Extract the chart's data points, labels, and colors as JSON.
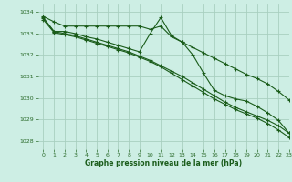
{
  "title": "Graphe pression niveau de la mer (hPa)",
  "background_color": "#cdeee4",
  "grid_color": "#a8cfc0",
  "line_color": "#1a5c1a",
  "xlim": [
    -0.5,
    23
  ],
  "ylim": [
    1027.6,
    1034.4
  ],
  "yticks": [
    1028,
    1029,
    1030,
    1031,
    1032,
    1033,
    1034
  ],
  "xticks": [
    0,
    1,
    2,
    3,
    4,
    5,
    6,
    7,
    8,
    9,
    10,
    11,
    12,
    13,
    14,
    15,
    16,
    17,
    18,
    19,
    20,
    21,
    22,
    23
  ],
  "series": [
    {
      "x": [
        0,
        1,
        2,
        3,
        4,
        5,
        6,
        7,
        8,
        9,
        10,
        11,
        12,
        13,
        14,
        15,
        16,
        17,
        18,
        19,
        20,
        21,
        22,
        23
      ],
      "y": [
        1033.8,
        1033.55,
        1033.35,
        1033.35,
        1033.35,
        1033.35,
        1033.35,
        1033.35,
        1033.35,
        1033.35,
        1033.2,
        1033.35,
        1032.85,
        1032.6,
        1032.35,
        1032.1,
        1031.85,
        1031.6,
        1031.35,
        1031.1,
        1030.9,
        1030.65,
        1030.3,
        1029.9
      ]
    },
    {
      "x": [
        0,
        1,
        2,
        3,
        4,
        5,
        6,
        7,
        8,
        9,
        10,
        11,
        12,
        13,
        14,
        15,
        16,
        17,
        18,
        19,
        20,
        21,
        22,
        23
      ],
      "y": [
        1033.75,
        1033.1,
        1033.1,
        1033.0,
        1032.85,
        1032.75,
        1032.6,
        1032.45,
        1032.3,
        1032.15,
        1033.0,
        1033.75,
        1032.9,
        1032.6,
        1032.0,
        1031.15,
        1030.35,
        1030.1,
        1029.95,
        1029.85,
        1029.6,
        1029.3,
        1028.95,
        1028.35
      ]
    },
    {
      "x": [
        0,
        1,
        2,
        3,
        4,
        5,
        6,
        7,
        8,
        9,
        10,
        11,
        12,
        13,
        14,
        15,
        16,
        17,
        18,
        19,
        20,
        21,
        22,
        23
      ],
      "y": [
        1033.7,
        1033.1,
        1033.0,
        1032.9,
        1032.75,
        1032.6,
        1032.45,
        1032.3,
        1032.15,
        1031.95,
        1031.75,
        1031.5,
        1031.25,
        1031.0,
        1030.7,
        1030.4,
        1030.1,
        1029.8,
        1029.55,
        1029.35,
        1029.15,
        1028.95,
        1028.7,
        1028.35
      ]
    },
    {
      "x": [
        0,
        1,
        2,
        3,
        4,
        5,
        6,
        7,
        8,
        9,
        10,
        11,
        12,
        13,
        14,
        15,
        16,
        17,
        18,
        19,
        20,
        21,
        22,
        23
      ],
      "y": [
        1033.65,
        1033.05,
        1032.95,
        1032.85,
        1032.7,
        1032.55,
        1032.4,
        1032.25,
        1032.1,
        1031.9,
        1031.7,
        1031.45,
        1031.15,
        1030.85,
        1030.55,
        1030.25,
        1029.95,
        1029.7,
        1029.45,
        1029.25,
        1029.05,
        1028.8,
        1028.5,
        1028.15
      ]
    }
  ]
}
